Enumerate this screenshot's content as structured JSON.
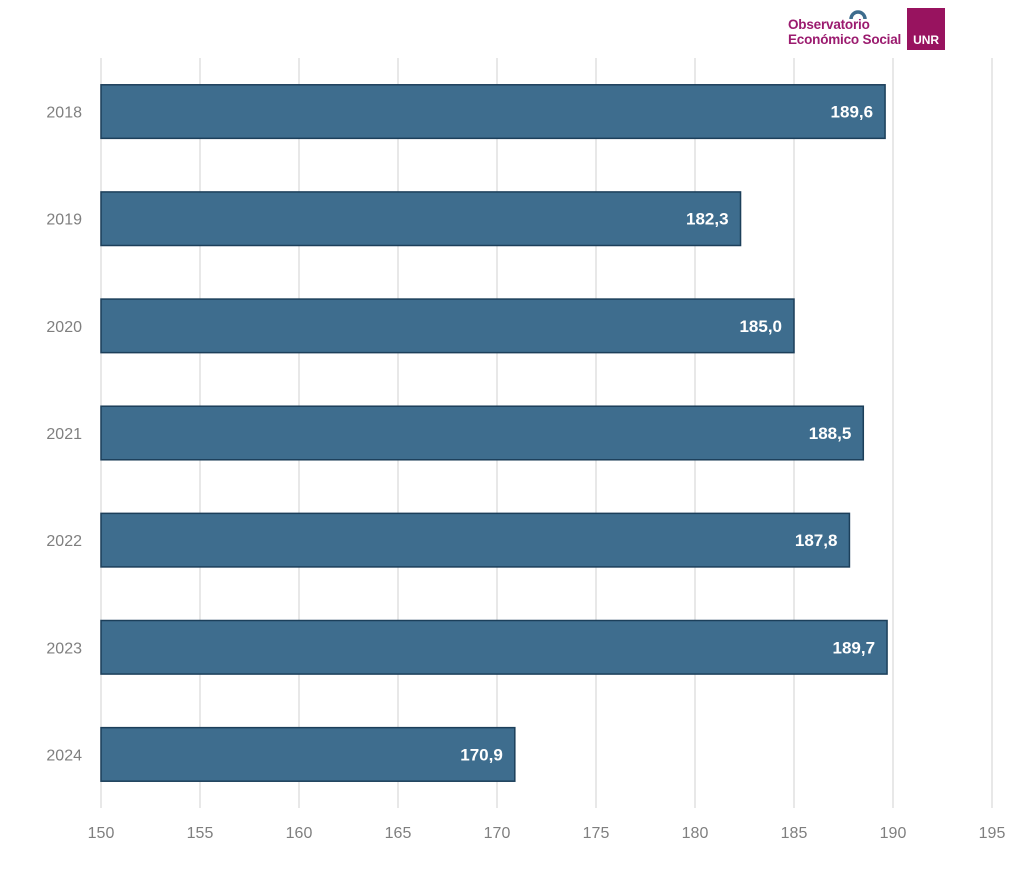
{
  "logo": {
    "line1": "Observatorio",
    "line2": "Económico Social",
    "badge": "UNR",
    "color": "#98135f"
  },
  "chart_data": {
    "type": "bar",
    "orientation": "horizontal",
    "title": "",
    "xlabel": "",
    "ylabel": "",
    "categories": [
      "2018",
      "2019",
      "2020",
      "2021",
      "2022",
      "2023",
      "2024"
    ],
    "values": [
      189.6,
      182.3,
      185.0,
      188.5,
      187.8,
      189.7,
      170.9
    ],
    "data_labels": [
      "189,6",
      "182,3",
      "185,0",
      "188,5",
      "187,8",
      "189,7",
      "170,9"
    ],
    "xlim": [
      150,
      195
    ],
    "x_ticks": [
      150,
      155,
      160,
      165,
      170,
      175,
      180,
      185,
      190,
      195
    ],
    "grid": "vertical",
    "legend": "none",
    "bar_color": "#3e6d8e",
    "bar_edge_color": "#1c3f5a",
    "label_color": "#ffffff",
    "grid_color": "#d9d9d9",
    "tick_color": "#7f7f7f"
  }
}
